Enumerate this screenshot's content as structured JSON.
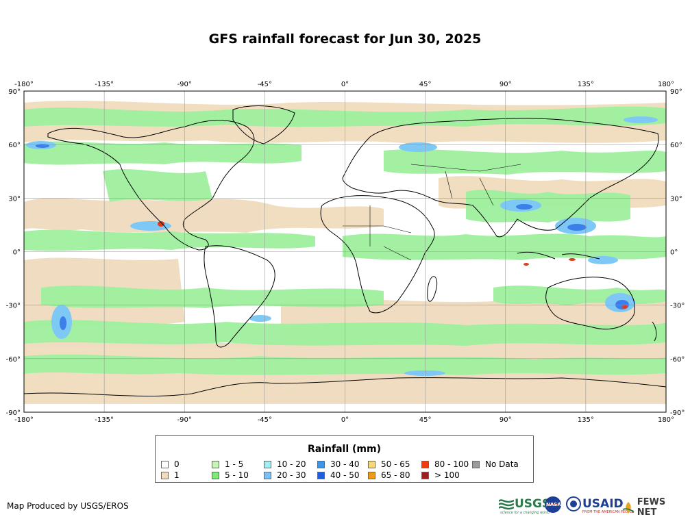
{
  "title": "GFS rainfall forecast for Jun 30, 2025",
  "map": {
    "lon_ticks": [
      "-180°",
      "-135°",
      "-90°",
      "-45°",
      "0°",
      "45°",
      "90°",
      "135°",
      "180°"
    ],
    "lat_ticks": [
      "90°",
      "60°",
      "30°",
      "0°",
      "-30°",
      "-60°",
      "-90°"
    ],
    "colors": {
      "ocean_no_rain": "#ffffff",
      "light_rain": "#f0dcbe",
      "moderate_rain": "#9ff09f",
      "heavy_rain": "#7ec8f5",
      "very_heavy_rain": "#3d7fe8",
      "extreme_rain": "#e03b1e",
      "coastline": "#000000",
      "grid": "#999999"
    }
  },
  "legend": {
    "title": "Rainfall (mm)",
    "items": [
      {
        "label": "0",
        "color": "#ffffff"
      },
      {
        "label": "1",
        "color": "#f0dcbe"
      },
      {
        "label": "1 - 5",
        "color": "#c9f5b8"
      },
      {
        "label": "5 - 10",
        "color": "#7fe87a"
      },
      {
        "label": "10 - 20",
        "color": "#a8ecf2"
      },
      {
        "label": "20 - 30",
        "color": "#7fbff2"
      },
      {
        "label": "30 - 40",
        "color": "#3d95e8"
      },
      {
        "label": "40 - 50",
        "color": "#1c5fe0"
      },
      {
        "label": "50 - 65",
        "color": "#f7d97a"
      },
      {
        "label": "65 - 80",
        "color": "#f09a1a"
      },
      {
        "label": "80 - 100",
        "color": "#f03a10"
      },
      {
        "label": "> 100",
        "color": "#9c1e1e"
      },
      {
        "label": "No Data",
        "color": "#9a9a9a"
      }
    ]
  },
  "credit": "Map Produced by USGS/EROS",
  "logos": {
    "usgs": "USGS",
    "usgs_tagline": "science for a changing world",
    "nasa": "NASA",
    "usaid": "USAID",
    "usaid_tagline": "FROM THE AMERICAN PEOPLE",
    "fewsnet": "FEWS NET"
  }
}
